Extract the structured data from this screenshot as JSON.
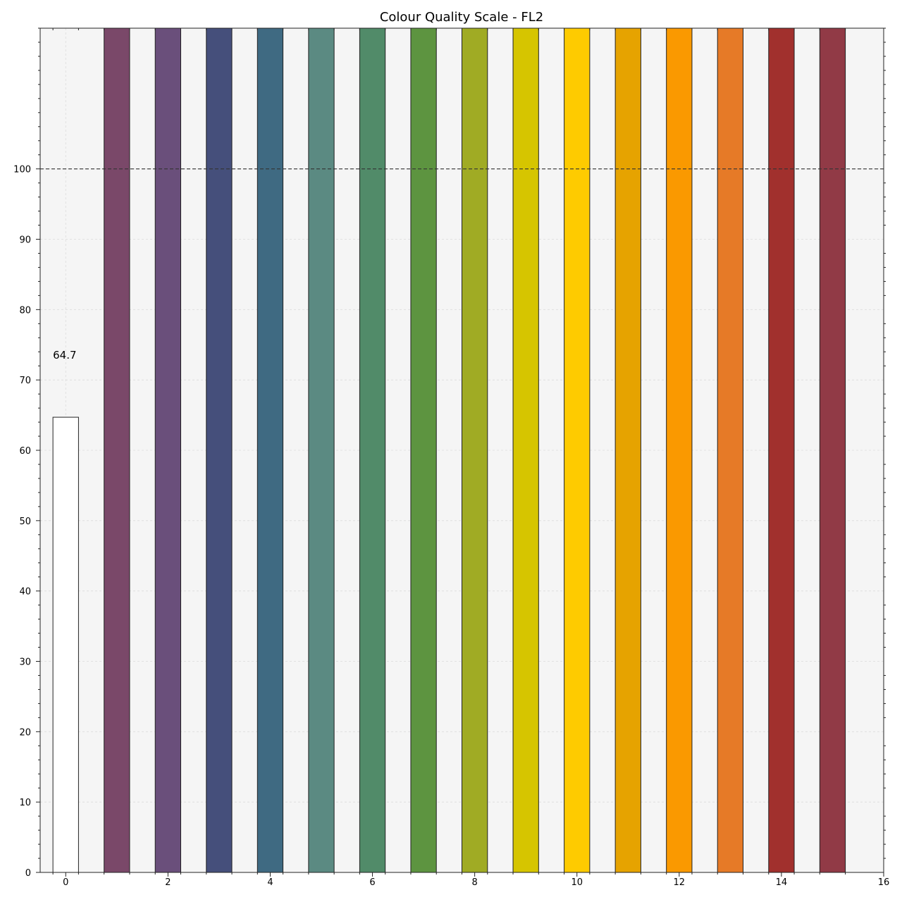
{
  "chart_data": {
    "type": "bar",
    "title": "Colour Quality Scale - FL2",
    "xlabel": "",
    "ylabel": "",
    "xlim": [
      -0.5,
      16
    ],
    "ylim": [
      0,
      120
    ],
    "xticks": [
      0,
      2,
      4,
      6,
      8,
      10,
      12,
      14,
      16
    ],
    "yticks": [
      0,
      10,
      20,
      30,
      40,
      50,
      60,
      70,
      80,
      90,
      100
    ],
    "reference_line": 100,
    "grid": true,
    "bars": [
      {
        "x": 0,
        "value": 64.7,
        "color": "#ffffff",
        "label": "64.7"
      },
      {
        "x": 1,
        "value": 120,
        "color": "#7a4869"
      },
      {
        "x": 2,
        "value": 120,
        "color": "#6a4f7b"
      },
      {
        "x": 3,
        "value": 120,
        "color": "#454f7b"
      },
      {
        "x": 4,
        "value": 120,
        "color": "#3f6a82"
      },
      {
        "x": 5,
        "value": 120,
        "color": "#5b8a82"
      },
      {
        "x": 6,
        "value": 120,
        "color": "#518b69"
      },
      {
        "x": 7,
        "value": 120,
        "color": "#5d9440"
      },
      {
        "x": 8,
        "value": 120,
        "color": "#a0ab24"
      },
      {
        "x": 9,
        "value": 120,
        "color": "#d6c500"
      },
      {
        "x": 10,
        "value": 120,
        "color": "#fecb00"
      },
      {
        "x": 11,
        "value": 120,
        "color": "#e6a300"
      },
      {
        "x": 12,
        "value": 120,
        "color": "#fa9900"
      },
      {
        "x": 13,
        "value": 120,
        "color": "#e67a27"
      },
      {
        "x": 14,
        "value": 120,
        "color": "#a1302d"
      },
      {
        "x": 15,
        "value": 120,
        "color": "#913a46"
      }
    ]
  }
}
